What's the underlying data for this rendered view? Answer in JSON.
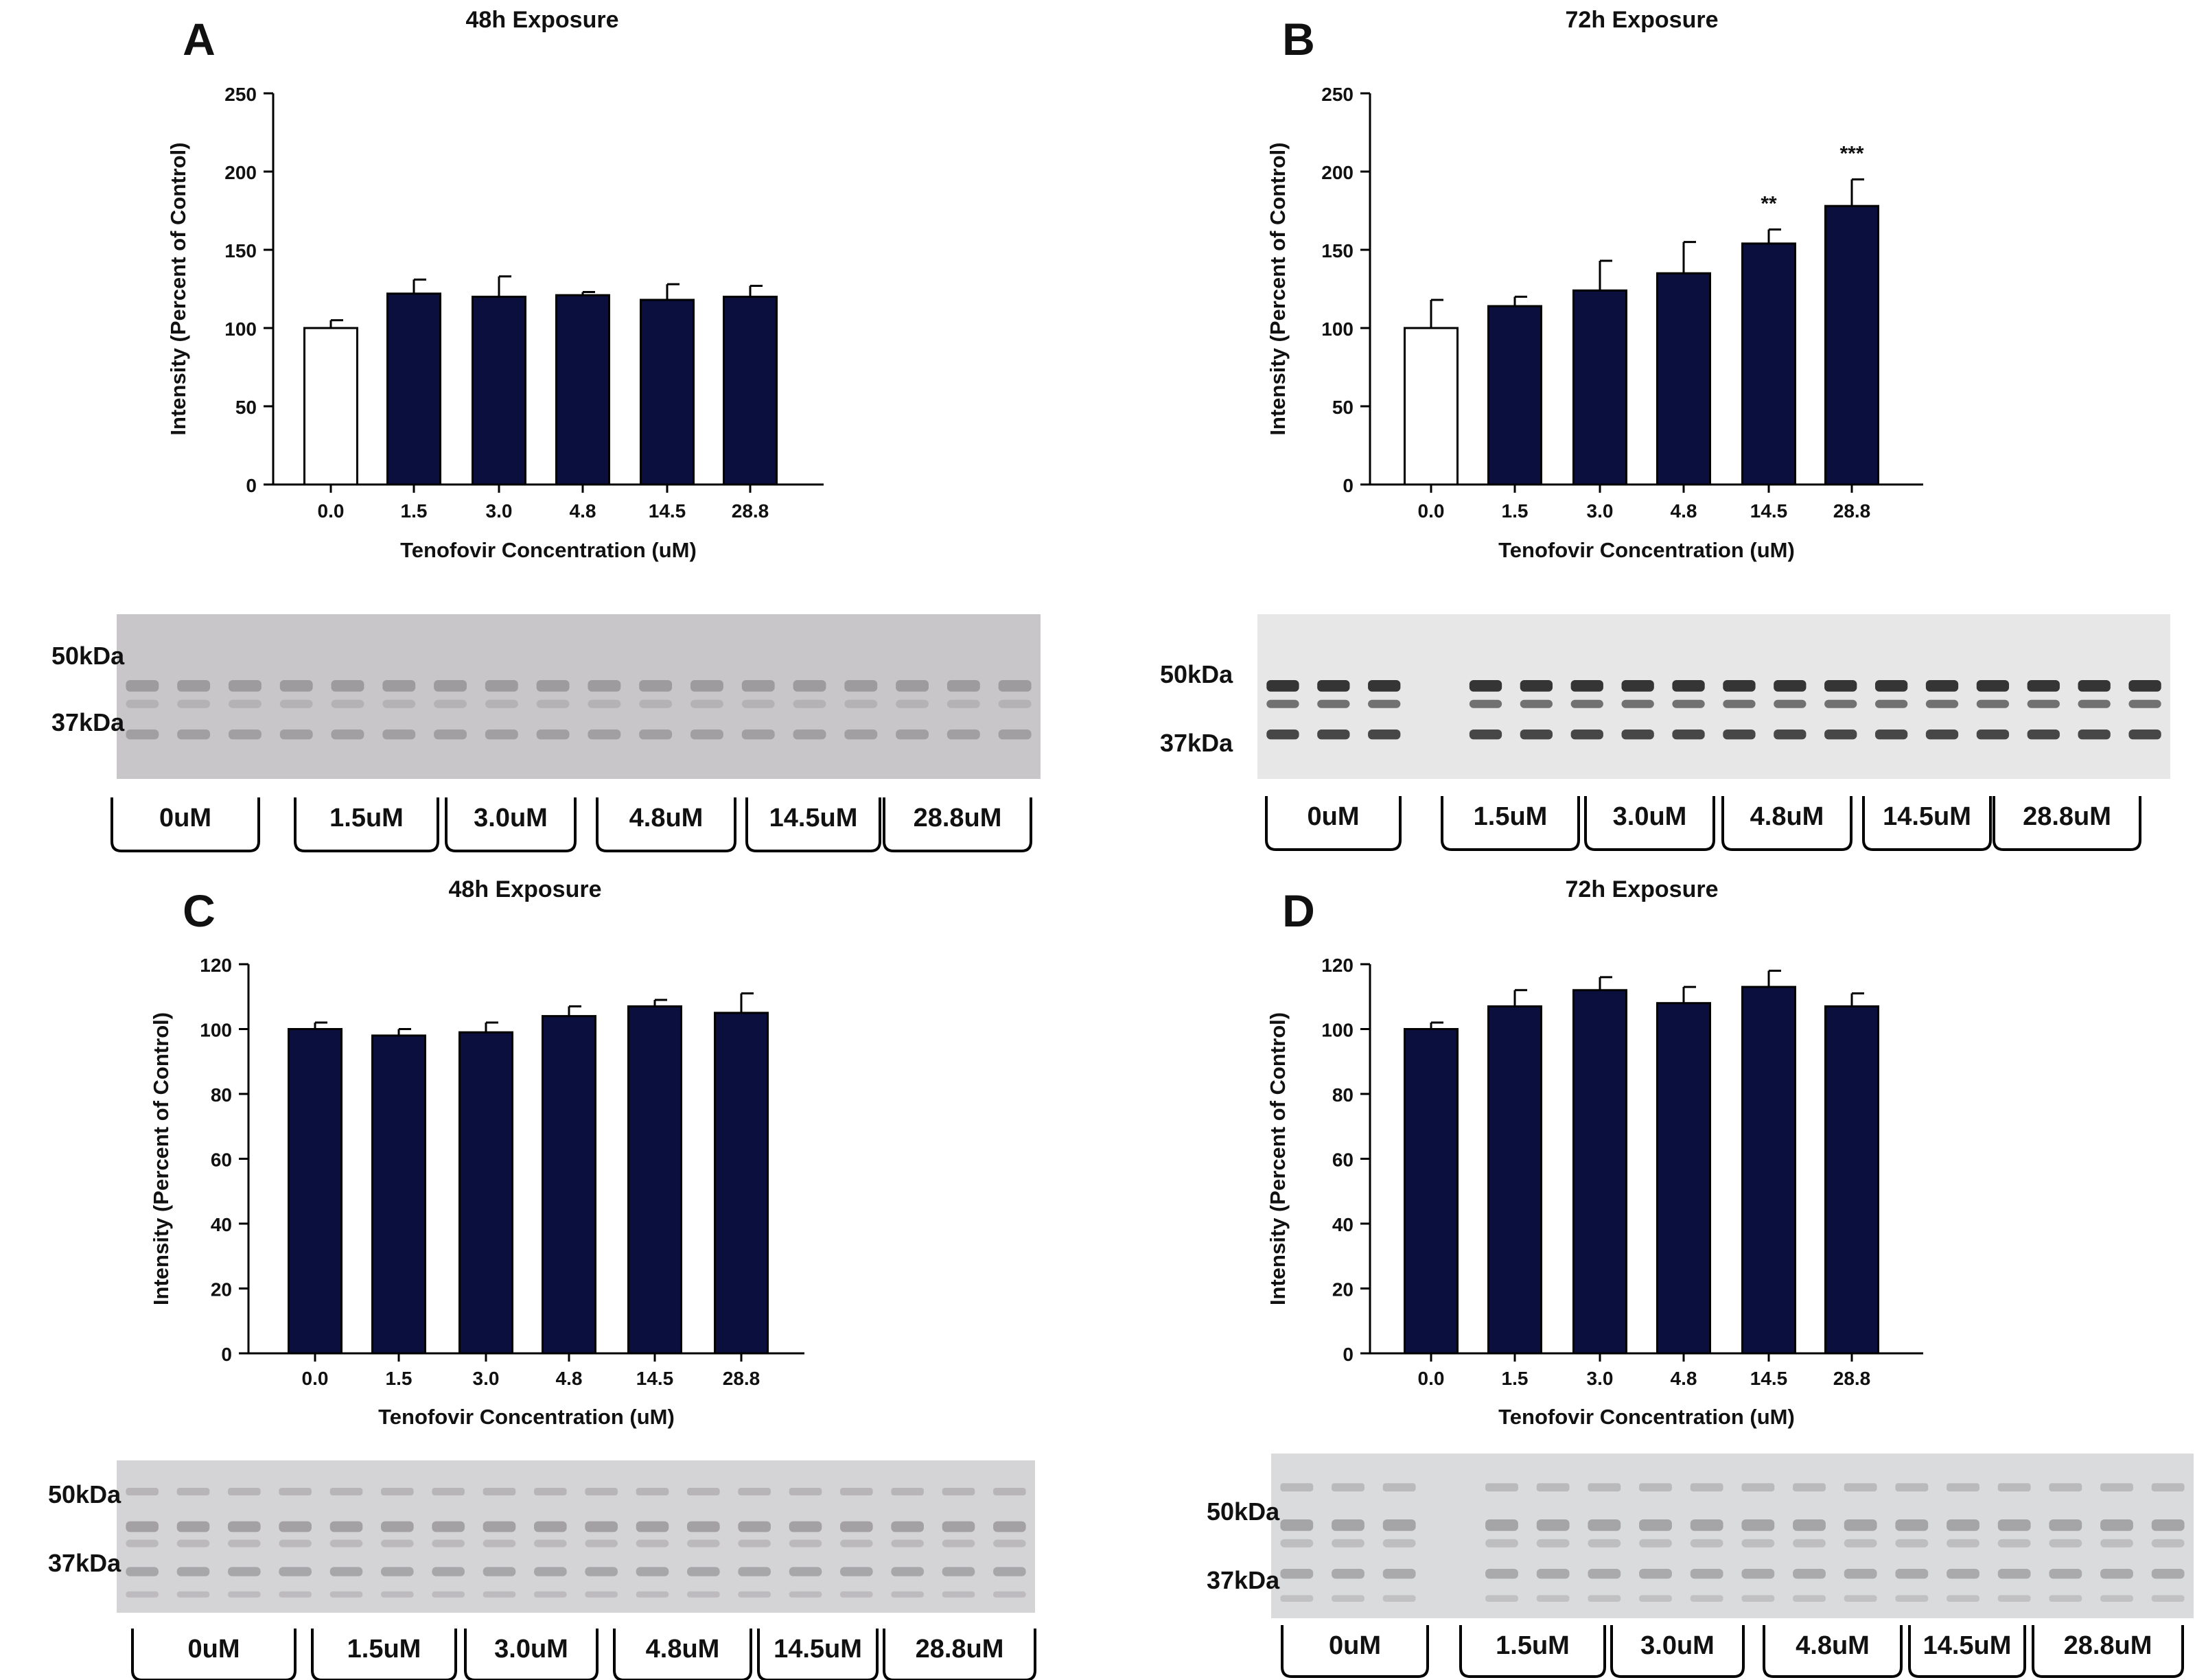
{
  "colors": {
    "bar_fill": "#0b0f3d",
    "control_fill": "#ffffff",
    "stroke": "#000000"
  },
  "chart_data": [
    {
      "panel_letter": "A",
      "type": "bar",
      "title": "48h Exposure",
      "xlabel": "Tenofovir Concentration (uM)",
      "ylabel": "Intensity (Percent of Control)",
      "categories": [
        "0.0",
        "1.5",
        "3.0",
        "4.8",
        "14.5",
        "28.8"
      ],
      "values": [
        100,
        122,
        120,
        121,
        118,
        120
      ],
      "errors": [
        5,
        9,
        13,
        2,
        10,
        7
      ],
      "control_white": true,
      "significance": [
        "",
        "",
        "",
        "",
        "",
        ""
      ],
      "yticks": [
        "0",
        "50",
        "100",
        "150",
        "200",
        "250"
      ],
      "ylim": [
        0,
        250
      ],
      "grid": false,
      "blot": {
        "markers": [
          "50kDa",
          "37kDa"
        ],
        "groups": [
          "0uM",
          "1.5uM",
          "3.0uM",
          "4.8uM",
          "14.5uM",
          "28.8uM"
        ]
      }
    },
    {
      "panel_letter": "B",
      "type": "bar",
      "title": "72h Exposure",
      "xlabel": "Tenofovir Concentration (uM)",
      "ylabel": "Intensity (Percent of Control)",
      "categories": [
        "0.0",
        "1.5",
        "3.0",
        "4.8",
        "14.5",
        "28.8"
      ],
      "values": [
        100,
        114,
        124,
        135,
        154,
        178
      ],
      "errors": [
        18,
        6,
        19,
        20,
        9,
        17
      ],
      "control_white": true,
      "significance": [
        "",
        "",
        "",
        "",
        "**",
        "***"
      ],
      "yticks": [
        "0",
        "50",
        "100",
        "150",
        "200",
        "250"
      ],
      "ylim": [
        0,
        250
      ],
      "grid": false,
      "blot": {
        "markers": [
          "50kDa",
          "37kDa"
        ],
        "groups": [
          "0uM",
          "1.5uM",
          "3.0uM",
          "4.8uM",
          "14.5uM",
          "28.8uM"
        ]
      }
    },
    {
      "panel_letter": "C",
      "type": "bar",
      "title": "48h Exposure",
      "xlabel": "Tenofovir Concentration (uM)",
      "ylabel": "Intensity (Percent of Control)",
      "categories": [
        "0.0",
        "1.5",
        "3.0",
        "4.8",
        "14.5",
        "28.8"
      ],
      "values": [
        100,
        98,
        99,
        104,
        107,
        105
      ],
      "errors": [
        2,
        2,
        3,
        3,
        2,
        6
      ],
      "control_white": false,
      "significance": [
        "",
        "",
        "",
        "",
        "",
        ""
      ],
      "yticks": [
        "0",
        "20",
        "40",
        "60",
        "80",
        "100",
        "120"
      ],
      "ylim": [
        0,
        120
      ],
      "grid": false,
      "blot": {
        "markers": [
          "50kDa",
          "37kDa"
        ],
        "groups": [
          "0uM",
          "1.5uM",
          "3.0uM",
          "4.8uM",
          "14.5uM",
          "28.8uM"
        ]
      }
    },
    {
      "panel_letter": "D",
      "type": "bar",
      "title": "72h Exposure",
      "xlabel": "Tenofovir Concentration (uM)",
      "ylabel": "Intensity (Percent of Control)",
      "categories": [
        "0.0",
        "1.5",
        "3.0",
        "4.8",
        "14.5",
        "28.8"
      ],
      "values": [
        100,
        107,
        112,
        108,
        113,
        107
      ],
      "errors": [
        2,
        5,
        4,
        5,
        5,
        4
      ],
      "control_white": false,
      "significance": [
        "",
        "",
        "",
        "",
        "",
        ""
      ],
      "yticks": [
        "0",
        "20",
        "40",
        "60",
        "80",
        "100",
        "120"
      ],
      "ylim": [
        0,
        120
      ],
      "grid": false,
      "blot": {
        "markers": [
          "50kDa",
          "37kDa"
        ],
        "groups": [
          "0uM",
          "1.5uM",
          "3.0uM",
          "4.8uM",
          "14.5uM",
          "28.8uM"
        ]
      }
    }
  ]
}
